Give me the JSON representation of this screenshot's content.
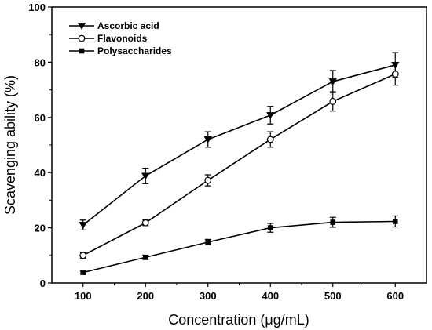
{
  "chart_data": {
    "type": "line",
    "xlabel": "Concentration (μg/mL)",
    "ylabel": "Scavenging ability (%)",
    "x": [
      100,
      200,
      300,
      400,
      500,
      600
    ],
    "xlim": [
      50,
      650
    ],
    "ylim": [
      0,
      100
    ],
    "xticks": [
      100,
      200,
      300,
      400,
      500,
      600
    ],
    "yticks": [
      0,
      20,
      40,
      60,
      80,
      100
    ],
    "grid": false,
    "legend_position": "top-left",
    "series": [
      {
        "name": "Ascorbic acid",
        "marker": "triangle-down-filled",
        "values": [
          21.0,
          38.8,
          52.0,
          60.8,
          73.0,
          79.0
        ],
        "errors": [
          1.8,
          2.8,
          2.8,
          3.2,
          4.0,
          4.5
        ]
      },
      {
        "name": "Flavonoids",
        "marker": "circle-open",
        "values": [
          10.0,
          21.8,
          37.2,
          52.0,
          65.8,
          75.7
        ],
        "errors": [
          1.0,
          1.0,
          2.0,
          2.8,
          3.5,
          4.0
        ]
      },
      {
        "name": "Polysaccharides",
        "marker": "square-filled",
        "values": [
          3.8,
          9.3,
          14.8,
          20.0,
          22.0,
          22.3
        ],
        "errors": [
          0.5,
          0.8,
          1.0,
          1.6,
          1.8,
          2.0
        ]
      }
    ]
  }
}
